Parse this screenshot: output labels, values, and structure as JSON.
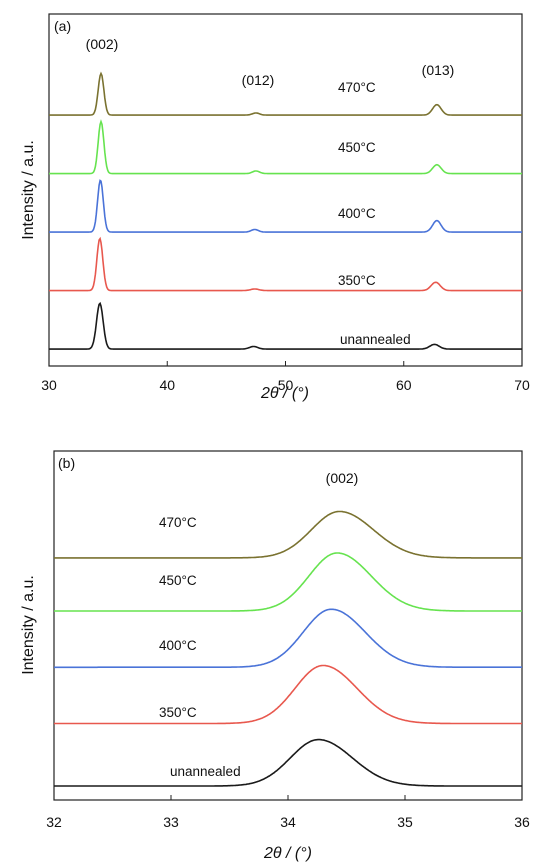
{
  "figure": {
    "panels": [
      "(a)",
      "(b)"
    ]
  },
  "chart_data": [
    {
      "type": "line",
      "panel_label": "(a)",
      "xlabel": "2θ / (°)",
      "ylabel": "Intensity / a.u.",
      "xlim": [
        30,
        70
      ],
      "x_ticks": [
        30,
        40,
        50,
        60,
        70
      ],
      "y_ticks_shown": false,
      "grid": false,
      "peak_labels": [
        "(002)",
        "(012)",
        "(013)"
      ],
      "peaks": [
        {
          "label": "(002)",
          "position": 34.4
        },
        {
          "label": "(012)",
          "position": 47.5
        },
        {
          "label": "(013)",
          "position": 62.8
        }
      ],
      "series": [
        {
          "name": "unannealed",
          "color": "#1a1a1a",
          "baseline": 0.05,
          "peaks": [
            {
              "x": 34.3,
              "height": 0.88,
              "width": 0.28
            },
            {
              "x": 47.3,
              "height": 0.05,
              "width": 0.35
            },
            {
              "x": 62.6,
              "height": 0.09,
              "width": 0.4
            }
          ]
        },
        {
          "name": "350°C",
          "color": "#e8584e",
          "baseline": 1.05,
          "peaks": [
            {
              "x": 34.3,
              "height": 1.0,
              "width": 0.25
            },
            {
              "x": 47.4,
              "height": 0.03,
              "width": 0.35
            },
            {
              "x": 62.7,
              "height": 0.16,
              "width": 0.38
            }
          ]
        },
        {
          "name": "400°C",
          "color": "#4a73d8",
          "baseline": 2.05,
          "peaks": [
            {
              "x": 34.35,
              "height": 1.0,
              "width": 0.24
            },
            {
              "x": 47.4,
              "height": 0.05,
              "width": 0.3
            },
            {
              "x": 62.8,
              "height": 0.22,
              "width": 0.36
            }
          ]
        },
        {
          "name": "450°C",
          "color": "#66e34f",
          "baseline": 3.05,
          "peaks": [
            {
              "x": 34.4,
              "height": 1.0,
              "width": 0.24
            },
            {
              "x": 47.5,
              "height": 0.05,
              "width": 0.3
            },
            {
              "x": 62.8,
              "height": 0.17,
              "width": 0.36
            }
          ]
        },
        {
          "name": "470°C",
          "color": "#7a7230",
          "baseline": 4.05,
          "peaks": [
            {
              "x": 34.4,
              "height": 0.8,
              "width": 0.24
            },
            {
              "x": 47.5,
              "height": 0.04,
              "width": 0.3
            },
            {
              "x": 62.8,
              "height": 0.2,
              "width": 0.36
            }
          ]
        }
      ]
    },
    {
      "type": "line",
      "panel_label": "(b)",
      "xlabel": "2θ / (°)",
      "ylabel": "Intensity / a.u.",
      "xlim": [
        32,
        36
      ],
      "x_ticks": [
        32,
        33,
        34,
        35,
        36
      ],
      "y_ticks_shown": false,
      "grid": false,
      "peak_labels": [
        "(002)"
      ],
      "peaks": [
        {
          "label": "(002)",
          "position": 34.42
        }
      ],
      "series": [
        {
          "name": "unannealed",
          "color": "#1a1a1a",
          "baseline": 0.0,
          "peak_x": 34.26,
          "peak_height": 0.8
        },
        {
          "name": "350°C",
          "color": "#e8584e",
          "baseline": 1.0,
          "peak_x": 34.3,
          "peak_height": 1.0
        },
        {
          "name": "400°C",
          "color": "#4a73d8",
          "baseline": 1.9,
          "peak_x": 34.37,
          "peak_height": 1.0
        },
        {
          "name": "450°C",
          "color": "#66e34f",
          "baseline": 2.8,
          "peak_x": 34.42,
          "peak_height": 1.0
        },
        {
          "name": "470°C",
          "color": "#7a7230",
          "baseline": 3.65,
          "peak_x": 34.44,
          "peak_height": 0.8
        }
      ]
    }
  ]
}
